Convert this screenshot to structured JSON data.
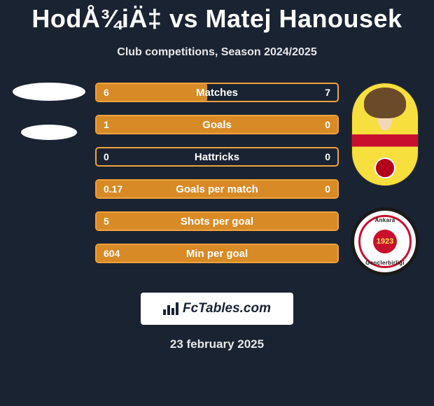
{
  "header": {
    "title": "HodÅ¾iÄ‡ vs Matej Hanousek",
    "subtitle": "Club competitions, Season 2024/2025"
  },
  "stats": {
    "border_color": "#f0a33c",
    "fill_color": "#d88a26",
    "rows": [
      {
        "label": "Matches",
        "left": "6",
        "right": "7",
        "fill_pct": 46
      },
      {
        "label": "Goals",
        "left": "1",
        "right": "0",
        "fill_pct": 100
      },
      {
        "label": "Hattricks",
        "left": "0",
        "right": "0",
        "fill_pct": 0
      },
      {
        "label": "Goals per match",
        "left": "0.17",
        "right": "0",
        "fill_pct": 100
      },
      {
        "label": "Shots per goal",
        "left": "5",
        "right": "",
        "fill_pct": 100
      },
      {
        "label": "Min per goal",
        "left": "604",
        "right": "",
        "fill_pct": 100
      }
    ]
  },
  "club_logo": {
    "top_text": "Ankara",
    "bottom_text": "Gençlerbirliği",
    "center_text": "1923"
  },
  "footer": {
    "brand": "FcTables.com",
    "date": "23 february 2025"
  },
  "colors": {
    "background": "#1a2332",
    "text": "#ffffff"
  }
}
